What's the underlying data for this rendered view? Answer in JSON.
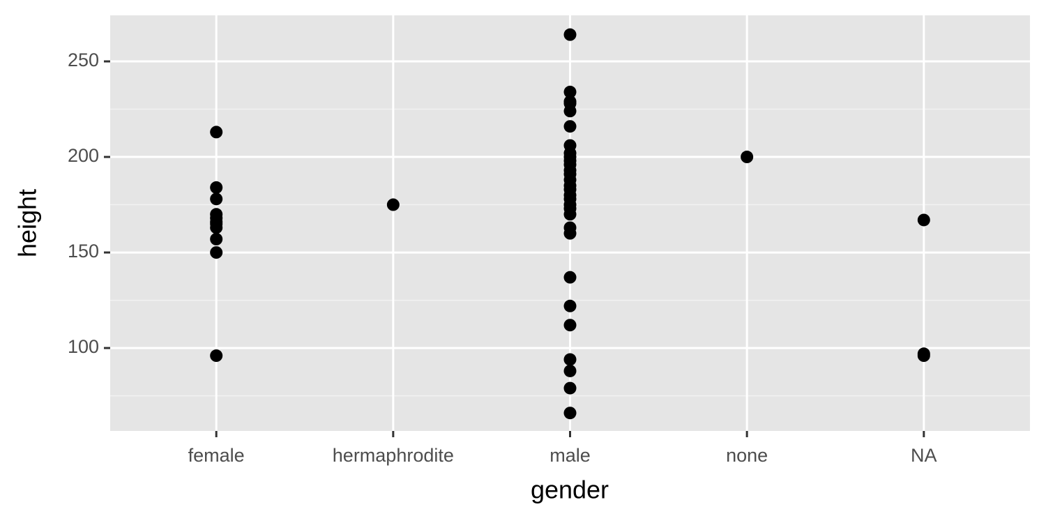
{
  "chart_data": {
    "type": "strip",
    "x_label": "gender",
    "y_label": "height",
    "categories": [
      "female",
      "hermaphrodite",
      "male",
      "none",
      "NA"
    ],
    "values": [
      [
        213,
        184,
        178,
        170,
        168,
        166,
        165,
        163,
        157,
        150,
        96
      ],
      [
        175
      ],
      [
        264,
        234,
        229,
        228,
        224,
        216,
        206,
        202,
        200,
        198,
        196,
        193,
        191,
        188,
        185,
        183,
        180,
        178,
        175,
        173,
        170,
        163,
        160,
        137,
        122,
        112,
        94,
        88,
        79,
        66
      ],
      [
        200
      ],
      [
        167,
        97,
        96
      ]
    ],
    "color": "#000000",
    "ylim": [
      56.6,
      274.1
    ],
    "yticks": [
      100,
      150,
      200,
      250
    ],
    "minor_yticks": [
      75,
      125,
      175,
      225
    ],
    "grid": true
  }
}
